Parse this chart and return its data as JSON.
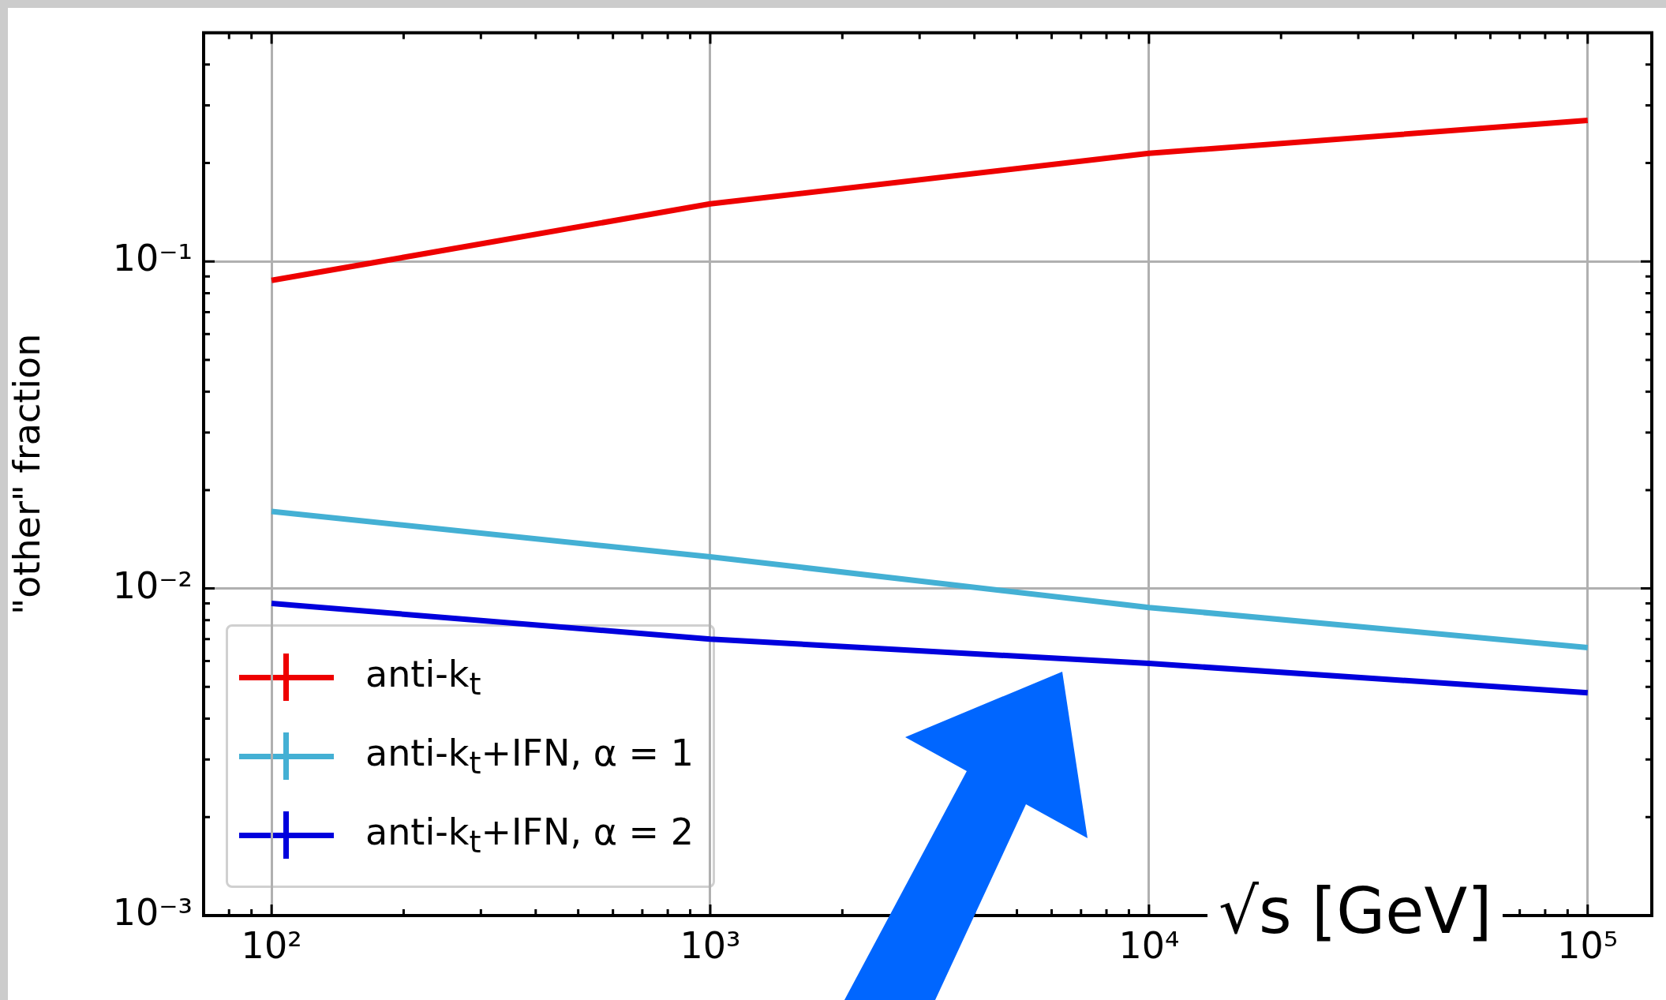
{
  "chart_data": {
    "type": "line",
    "xlabel": "√s [GeV]",
    "ylabel": "\"other\" fraction",
    "log": "xy",
    "grid": true,
    "legend": "bottom left",
    "x": [
      100,
      1000,
      10000,
      100000
    ],
    "xlim": [
      70,
      140000
    ],
    "xticks": [
      {
        "value": 80,
        "label": null
      },
      {
        "value": 90,
        "label": null
      },
      {
        "value": 100,
        "label": "10²"
      },
      {
        "value": 200,
        "label": null
      },
      {
        "value": 300,
        "label": null
      },
      {
        "value": 400,
        "label": null
      },
      {
        "value": 500,
        "label": null
      },
      {
        "value": 600,
        "label": null
      },
      {
        "value": 700,
        "label": null
      },
      {
        "value": 800,
        "label": null
      },
      {
        "value": 900,
        "label": null
      },
      {
        "value": 1000,
        "label": "10³"
      },
      {
        "value": 2000,
        "label": null
      },
      {
        "value": 3000,
        "label": null
      },
      {
        "value": 4000,
        "label": null
      },
      {
        "value": 5000,
        "label": null
      },
      {
        "value": 6000,
        "label": null
      },
      {
        "value": 7000,
        "label": null
      },
      {
        "value": 8000,
        "label": null
      },
      {
        "value": 9000,
        "label": null
      },
      {
        "value": 10000,
        "label": "10⁴"
      },
      {
        "value": 20000,
        "label": null
      },
      {
        "value": 30000,
        "label": null
      },
      {
        "value": 40000,
        "label": null
      },
      {
        "value": 50000,
        "label": null
      },
      {
        "value": 60000,
        "label": null
      },
      {
        "value": 70000,
        "label": null
      },
      {
        "value": 80000,
        "label": null
      },
      {
        "value": 90000,
        "label": null
      },
      {
        "value": 100000,
        "label": "10⁵"
      }
    ],
    "ylim": [
      0.001,
      0.5
    ],
    "yticks": [
      {
        "value": 0.001,
        "label": "10⁻³"
      },
      {
        "value": 0.002,
        "label": null
      },
      {
        "value": 0.003,
        "label": null
      },
      {
        "value": 0.004,
        "label": null
      },
      {
        "value": 0.005,
        "label": null
      },
      {
        "value": 0.006,
        "label": null
      },
      {
        "value": 0.007,
        "label": null
      },
      {
        "value": 0.008,
        "label": null
      },
      {
        "value": 0.009,
        "label": null
      },
      {
        "value": 0.01,
        "label": "10⁻²"
      },
      {
        "value": 0.02,
        "label": null
      },
      {
        "value": 0.03,
        "label": null
      },
      {
        "value": 0.04,
        "label": null
      },
      {
        "value": 0.05,
        "label": null
      },
      {
        "value": 0.06,
        "label": null
      },
      {
        "value": 0.07,
        "label": null
      },
      {
        "value": 0.08,
        "label": null
      },
      {
        "value": 0.09,
        "label": null
      },
      {
        "value": 0.1,
        "label": "10⁻¹"
      },
      {
        "value": 0.2,
        "label": null
      },
      {
        "value": 0.3,
        "label": null
      },
      {
        "value": 0.4,
        "label": null
      }
    ],
    "series": [
      {
        "name": "anti-k$_{t}$",
        "color": "#ee0000",
        "values": [
          0.0875,
          0.15,
          0.214,
          0.27
        ]
      },
      {
        "name": "anti-k$_{t}$+IFN, α = 1",
        "color": "#44b0d4",
        "values": [
          0.0172,
          0.0125,
          0.00875,
          0.0066
        ]
      },
      {
        "name": "anti-k$_{t}$+IFN, α = 2",
        "color": "#0000dd",
        "values": [
          0.009,
          0.007,
          0.0059,
          0.0048
        ]
      }
    ]
  }
}
